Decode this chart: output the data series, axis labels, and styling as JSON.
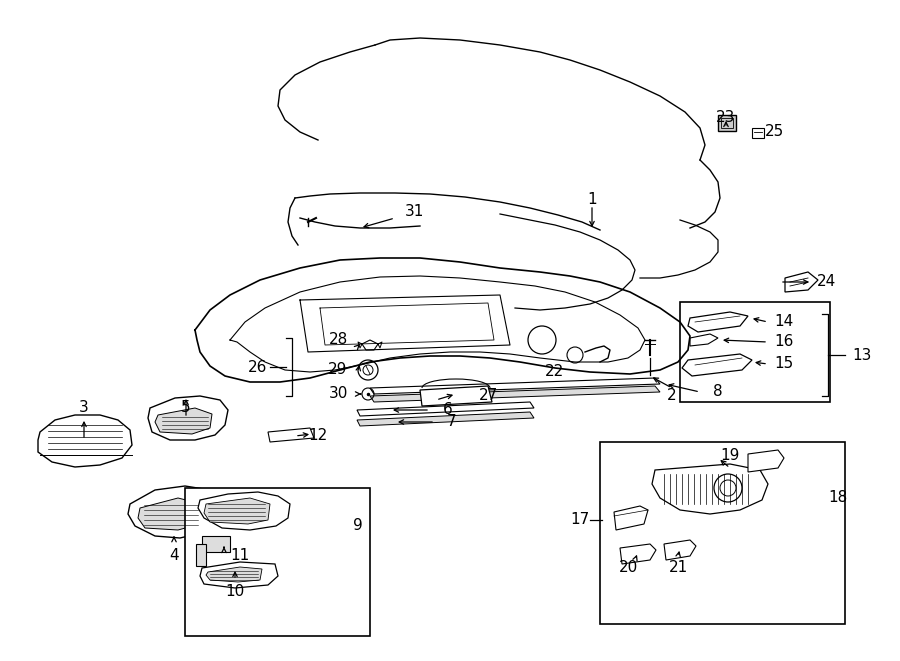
{
  "bg_color": "#ffffff",
  "fg_color": "#000000",
  "figsize": [
    9.0,
    6.61
  ],
  "dpi": 100,
  "label_fontsize": 11,
  "lw": 1.0
}
